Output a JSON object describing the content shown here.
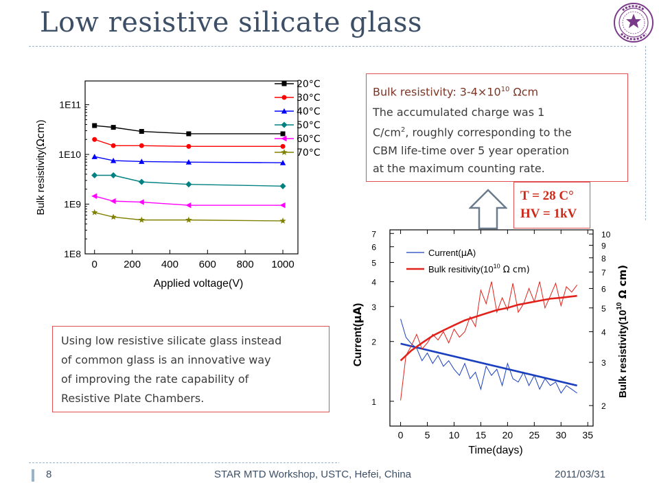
{
  "slide": {
    "title": "Low resistive silicate glass",
    "page_number": "8",
    "footer_center": "STAR MTD Workshop, USTC, Hefei, China",
    "footer_date": "2011/03/31"
  },
  "resistivity_box": {
    "headline_prefix": "Bulk resistivity: 3-4×10",
    "headline_exp": "10",
    "headline_suffix": " Ωcm",
    "line1_a": "The accumulated charge was 1",
    "line2_a": "C/cm",
    "line2_exp": "2",
    "line2_b": ", roughly corresponding to the",
    "line3": "CBM life-time over 5 year operation",
    "line4": "at the maximum counting rate."
  },
  "conditions_box": {
    "temperature": "T = 28 C°",
    "hv": "HV = 1kV"
  },
  "description_box": {
    "line1": "Using low resistive silicate glass instead",
    "line2": "of common glass is an innovative way",
    "line3": "of improving the rate capability of",
    "line4": "Resistive Plate Chambers."
  },
  "colors": {
    "title": "#3d4f66",
    "box_border": "#e05050",
    "accent_text": "#7b3524",
    "conditions_text": "#cc2a1a"
  },
  "chart_data": [
    {
      "type": "line",
      "xlabel": "Applied voltage(V)",
      "ylabel": "Bulk resistivity(Ωcm)",
      "ylabel_prefix": "Bulk resistivity(",
      "ylabel_unit": "Ωcm",
      "ylabel_suffix": ")",
      "yscale": "log",
      "xlim": [
        -50,
        1080
      ],
      "ylim": [
        100000000.0,
        300000000000.0
      ],
      "x_ticks": [
        0,
        200,
        400,
        600,
        800,
        1000
      ],
      "x_tick_labels": [
        "0",
        "200",
        "400",
        "600",
        "800",
        "1000"
      ],
      "y_ticks": [
        100000000.0,
        1000000000.0,
        10000000000.0,
        100000000000.0
      ],
      "y_tick_labels": [
        "1E8",
        "1E9",
        "1E10",
        "1E11"
      ],
      "legend_position": "top-right",
      "series": [
        {
          "name": "20°C",
          "color": "#000000",
          "marker": "square",
          "x": [
            0,
            100,
            250,
            500,
            1000
          ],
          "y": [
            38000000000.0,
            35000000000.0,
            29000000000.0,
            26000000000.0,
            26000000000.0
          ]
        },
        {
          "name": "30°C",
          "color": "#ff0000",
          "marker": "circle",
          "x": [
            0,
            100,
            250,
            500,
            1000
          ],
          "y": [
            20000000000.0,
            15000000000.0,
            15000000000.0,
            14500000000.0,
            14500000000.0
          ]
        },
        {
          "name": "40°C",
          "color": "#0000ff",
          "marker": "triangle",
          "x": [
            0,
            100,
            250,
            500,
            1000
          ],
          "y": [
            9000000000.0,
            7500000000.0,
            7200000000.0,
            7000000000.0,
            6800000000.0
          ]
        },
        {
          "name": "50°C",
          "color": "#008080",
          "marker": "diamond",
          "x": [
            0,
            100,
            250,
            500,
            1000
          ],
          "y": [
            3800000000.0,
            3800000000.0,
            2800000000.0,
            2500000000.0,
            2300000000.0
          ]
        },
        {
          "name": "60°C",
          "color": "#ff00ff",
          "marker": "triangle-left",
          "x": [
            0,
            100,
            250,
            500,
            1000
          ],
          "y": [
            1450000000.0,
            1150000000.0,
            1100000000.0,
            950000000.0,
            950000000.0
          ]
        },
        {
          "name": "70°C",
          "color": "#808000",
          "marker": "star",
          "x": [
            0,
            100,
            250,
            500,
            1000
          ],
          "y": [
            680000000.0,
            550000000.0,
            480000000.0,
            480000000.0,
            460000000.0
          ]
        }
      ]
    },
    {
      "type": "line",
      "xlabel": "Time(days)",
      "ylabel": "Current(μA)",
      "ylabel_prefix": "Current(",
      "ylabel_unit": "μA",
      "ylabel_suffix": ")",
      "y2label": "Bulk resistivity(10¹⁰ Ω cm)",
      "y2label_prefix": "Bulk resistivity(10",
      "y2label_exp": "10",
      "y2label_unit": " Ω cm)",
      "yscale": "log",
      "xlim": [
        -2,
        36
      ],
      "ylim": [
        0.75,
        7.3
      ],
      "y2lim": [
        1.65,
        10.4
      ],
      "x_ticks": [
        0,
        5,
        10,
        15,
        20,
        25,
        30,
        35
      ],
      "x_tick_labels": [
        "0",
        "5",
        "10",
        "15",
        "20",
        "25",
        "30",
        "35"
      ],
      "y_ticks": [
        1,
        2,
        3,
        4,
        5,
        6,
        7
      ],
      "y_tick_labels": [
        "1",
        "2",
        "3",
        "4",
        "5",
        "6",
        "7"
      ],
      "y2_ticks": [
        2,
        3,
        4,
        5,
        6,
        7,
        8,
        9,
        10
      ],
      "y2_tick_labels": [
        "2",
        "3",
        "4",
        "5",
        "6",
        "7",
        "8",
        "9",
        "10"
      ],
      "legend_position": "top-left",
      "legend": [
        {
          "name": "Current(μA)",
          "prefix": "Current(",
          "unit": "μA",
          "suffix": ")",
          "color": "#1a3fbf"
        },
        {
          "name": "Bulk resitivity(10¹⁰ Ω cm)",
          "prefix": "Bulk resitivity(10",
          "exp": "10",
          "unit": " Ω cm)",
          "color": "#e0221a"
        }
      ],
      "series": [
        {
          "name": "Current(μA)",
          "axis": "left",
          "color": "#1a3fbf",
          "x": [
            0,
            1,
            2,
            3,
            4,
            5,
            6,
            7,
            8,
            9,
            10,
            11,
            12,
            13,
            14,
            15,
            16,
            17,
            18,
            19,
            20,
            21,
            22,
            23,
            24,
            25,
            26,
            27,
            28,
            29,
            30,
            31,
            32,
            33
          ],
          "y": [
            2.6,
            2.1,
            1.95,
            1.85,
            1.6,
            1.75,
            1.55,
            1.7,
            1.5,
            1.6,
            1.45,
            1.35,
            1.55,
            1.3,
            1.4,
            1.15,
            1.5,
            1.35,
            1.45,
            1.2,
            1.55,
            1.3,
            1.25,
            1.4,
            1.2,
            1.35,
            1.15,
            1.3,
            1.2,
            1.25,
            1.1,
            1.2,
            1.15,
            1.1
          ]
        },
        {
          "name": "Current fit",
          "axis": "left",
          "color": "#1a3fbf",
          "fit": true,
          "x": [
            0,
            33
          ],
          "y": [
            1.95,
            1.2
          ]
        },
        {
          "name": "Bulk resitivity(10¹⁰ Ω cm)",
          "axis": "right",
          "color": "#e0221a",
          "x": [
            0,
            1,
            2,
            3,
            4,
            5,
            6,
            7,
            8,
            9,
            10,
            11,
            12,
            13,
            14,
            15,
            16,
            17,
            18,
            19,
            20,
            21,
            22,
            23,
            24,
            25,
            26,
            27,
            28,
            29,
            30,
            31,
            32,
            33
          ],
          "y": [
            2.1,
            3.2,
            3.5,
            3.9,
            3.4,
            3.6,
            3.9,
            3.7,
            4.0,
            3.6,
            4.1,
            3.8,
            4.0,
            4.6,
            4.2,
            5.9,
            5.2,
            6.4,
            4.8,
            5.5,
            4.9,
            6.3,
            4.8,
            5.2,
            6.0,
            5.3,
            6.4,
            5.0,
            5.6,
            6.3,
            5.1,
            6.1,
            5.8,
            6.2
          ]
        },
        {
          "name": "Bulk resistivity fit",
          "axis": "right",
          "color": "#e0221a",
          "fit": true,
          "x": [
            0,
            2,
            4,
            6,
            8,
            10,
            12,
            14,
            16,
            18,
            20,
            22,
            24,
            26,
            28,
            30,
            33
          ],
          "y": [
            3.05,
            3.35,
            3.6,
            3.85,
            4.05,
            4.25,
            4.45,
            4.6,
            4.75,
            4.9,
            5.0,
            5.15,
            5.25,
            5.35,
            5.45,
            5.5,
            5.6
          ]
        }
      ]
    }
  ]
}
